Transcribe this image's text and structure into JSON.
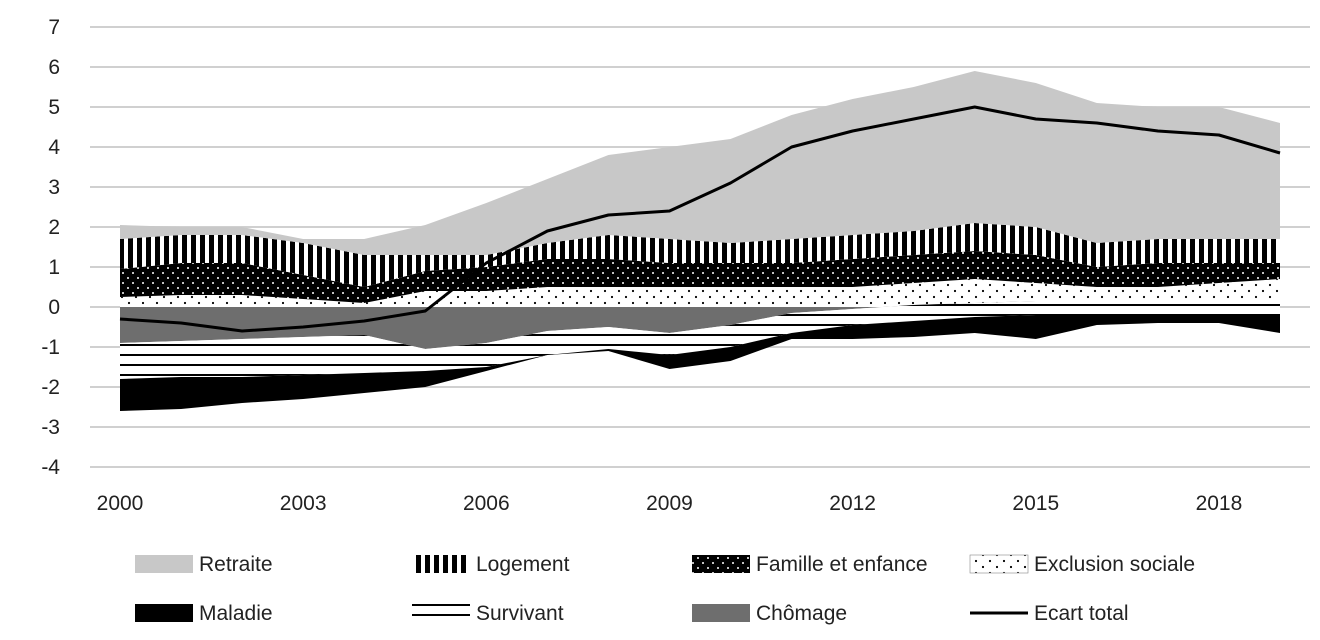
{
  "chart_data": {
    "type": "area",
    "title": "",
    "xlabel": "",
    "ylabel": "",
    "ylim": [
      -4,
      7
    ],
    "yticks": [
      -4,
      -3,
      -2,
      -1,
      0,
      1,
      2,
      3,
      4,
      5,
      6,
      7
    ],
    "xlim": [
      2000,
      2019
    ],
    "xticks": [
      2000,
      2003,
      2006,
      2009,
      2012,
      2015,
      2018
    ],
    "grid": "horizontal",
    "legend_position": "bottom",
    "x": [
      2000,
      2001,
      2002,
      2003,
      2004,
      2005,
      2006,
      2007,
      2008,
      2009,
      2010,
      2011,
      2012,
      2013,
      2014,
      2015,
      2016,
      2017,
      2018,
      2019
    ],
    "series": [
      {
        "name": "Retraite",
        "kind": "stack",
        "color": "#c8c8c8",
        "values": [
          0.35,
          0.2,
          0.2,
          0.1,
          0.4,
          0.75,
          1.3,
          1.6,
          2.0,
          2.3,
          2.6,
          3.1,
          3.4,
          3.6,
          3.8,
          3.6,
          3.5,
          3.3,
          3.3,
          2.9
        ]
      },
      {
        "name": "Logement",
        "kind": "stack",
        "pattern": "vstripe",
        "values": [
          0.75,
          0.7,
          0.7,
          0.8,
          0.8,
          0.4,
          0.3,
          0.4,
          0.6,
          0.6,
          0.5,
          0.6,
          0.6,
          0.6,
          0.7,
          0.7,
          0.6,
          0.6,
          0.6,
          0.6
        ]
      },
      {
        "name": "Famille et enfance",
        "kind": "stack",
        "pattern": "blackdots",
        "values": [
          0.7,
          0.8,
          0.8,
          0.6,
          0.4,
          0.5,
          0.6,
          0.7,
          0.7,
          0.6,
          0.6,
          0.6,
          0.7,
          0.7,
          0.7,
          0.7,
          0.5,
          0.6,
          0.5,
          0.4
        ]
      },
      {
        "name": "Exclusion sociale",
        "kind": "stack",
        "pattern": "whitedots",
        "values": [
          0.25,
          0.3,
          0.3,
          0.2,
          0.1,
          0.4,
          0.4,
          0.5,
          0.5,
          0.5,
          0.5,
          0.5,
          0.5,
          0.6,
          0.7,
          0.6,
          0.5,
          0.5,
          0.6,
          0.7
        ]
      },
      {
        "name": "Chômage",
        "kind": "stackneg",
        "color": "#6e6e6e",
        "values": [
          -0.9,
          -0.85,
          -0.8,
          -0.75,
          -0.7,
          -1.05,
          -0.9,
          -0.6,
          -0.5,
          -0.65,
          -0.45,
          -0.15,
          -0.05,
          0.05,
          0.1,
          0.15,
          0.15,
          0.15,
          0.15,
          0.15
        ]
      },
      {
        "name": "Survivant",
        "kind": "stackneg",
        "pattern": "hstripe",
        "values": [
          -0.9,
          -0.9,
          -0.95,
          -0.95,
          -0.95,
          -0.55,
          -0.6,
          -0.6,
          -0.55,
          -0.55,
          -0.55,
          -0.5,
          -0.4,
          -0.4,
          -0.35,
          -0.35,
          -0.35,
          -0.35,
          -0.35,
          -0.35
        ]
      },
      {
        "name": "Maladie",
        "kind": "stackneg",
        "color": "#000000",
        "values": [
          -0.8,
          -0.8,
          -0.65,
          -0.6,
          -0.5,
          -0.4,
          -0.1,
          0.0,
          -0.05,
          -0.35,
          -0.35,
          -0.15,
          -0.35,
          -0.4,
          -0.4,
          -0.6,
          -0.25,
          -0.2,
          -0.2,
          -0.45
        ]
      },
      {
        "name": "Ecart total",
        "kind": "line",
        "color": "#000000",
        "values": [
          -0.3,
          -0.4,
          -0.6,
          -0.5,
          -0.35,
          -0.1,
          1.1,
          1.9,
          2.3,
          2.4,
          3.1,
          4.0,
          4.4,
          4.7,
          5.0,
          4.7,
          4.6,
          4.4,
          4.3,
          3.85
        ]
      }
    ]
  }
}
